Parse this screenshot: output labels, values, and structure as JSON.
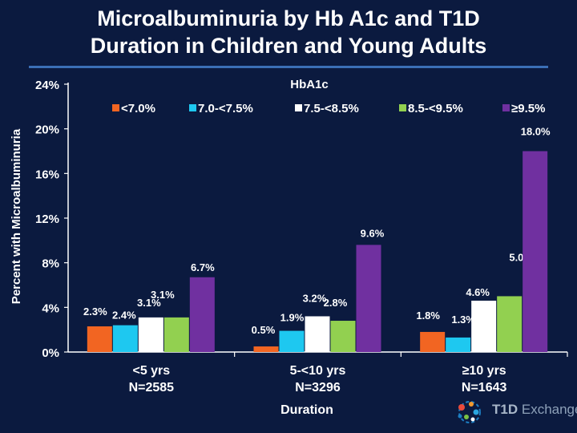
{
  "title_line1": "Microalbuminuria by Hb A1c and T1D",
  "title_line2": "Duration in Children and Young Adults",
  "logo": {
    "brand": "T1D",
    "suffix": "Exchange"
  },
  "chart_data": {
    "type": "bar",
    "title": "Microalbuminuria by HbA1c and T1D Duration in Children and Young Adults",
    "ylabel": "Percent with Microalbuminuria",
    "xlabel": "Duration",
    "legend_title": "HbA1c",
    "ylim": [
      0,
      24
    ],
    "yticks": [
      0,
      4,
      8,
      12,
      16,
      20,
      24
    ],
    "ytick_labels": [
      "0%",
      "4%",
      "8%",
      "12%",
      "16%",
      "20%",
      "24%"
    ],
    "categories": [
      {
        "label": "<5 yrs",
        "n": "N=2585"
      },
      {
        "label": "5-<10 yrs",
        "n": "N=3296"
      },
      {
        "label": "≥10 yrs",
        "n": "N=1643"
      }
    ],
    "series": [
      {
        "name": "<7.0%",
        "color": "#f26522",
        "values": [
          2.3,
          0.5,
          1.8
        ],
        "labels": [
          "2.3%",
          "0.5%",
          "1.8%"
        ]
      },
      {
        "name": "7.0-<7.5%",
        "color": "#1ec8f0",
        "values": [
          2.4,
          1.9,
          1.3
        ],
        "labels": [
          "2.4%",
          "1.9%",
          "1.3%"
        ]
      },
      {
        "name": "7.5-<8.5%",
        "color": "#ffffff",
        "values": [
          3.1,
          3.2,
          4.6
        ],
        "labels": [
          "3.1%",
          "3.2%",
          "4.6%"
        ]
      },
      {
        "name": "8.5-<9.5%",
        "color": "#92d050",
        "values": [
          3.1,
          2.8,
          5.0
        ],
        "labels": [
          "3.1%",
          "2.8%",
          "5.0%"
        ]
      },
      {
        "name": "≥9.5%",
        "color": "#7030a0",
        "values": [
          6.7,
          9.6,
          18.0
        ],
        "labels": [
          "6.7%",
          "9.6%",
          "18.0%"
        ]
      }
    ]
  }
}
